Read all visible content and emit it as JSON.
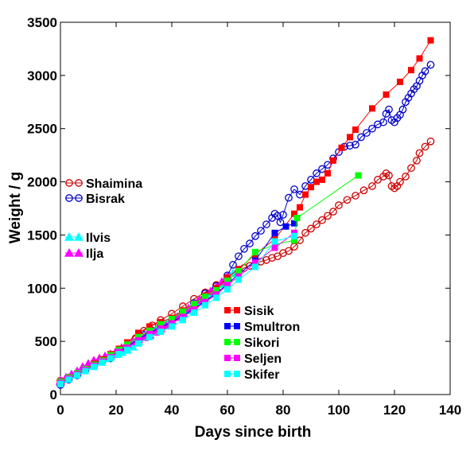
{
  "chart_data": {
    "type": "scatter",
    "title": "",
    "xlabel": "Days since birth",
    "ylabel": "Weight / g",
    "xlim": [
      0,
      140
    ],
    "ylim": [
      0,
      3500
    ],
    "xticks": [
      0,
      20,
      40,
      60,
      80,
      100,
      120,
      140
    ],
    "yticks": [
      0,
      500,
      1000,
      1500,
      2000,
      2500,
      3000,
      3500
    ],
    "xtick_labels": [
      "0",
      "20",
      "40",
      "60",
      "80",
      "100",
      "120",
      "140"
    ],
    "ytick_labels": [
      "0",
      "500",
      "1000",
      "1500",
      "2000",
      "2500",
      "3000",
      "3500"
    ],
    "grid": false,
    "legend_groups": [
      "left-middle",
      "lower-middle"
    ],
    "series": [
      {
        "name": "Shaimina",
        "color": "#cc0000",
        "marker": "circle-open",
        "line": true,
        "x": [
          0,
          3,
          6,
          9,
          12,
          15,
          18,
          21,
          24,
          27,
          30,
          33,
          36,
          40,
          44,
          48,
          52,
          56,
          60,
          64,
          66,
          68,
          70,
          72,
          74,
          76,
          78,
          80,
          82,
          84,
          86,
          88,
          90,
          92,
          94,
          96,
          98,
          100,
          103,
          106,
          109,
          112,
          114,
          116,
          117,
          118,
          119,
          120,
          121,
          122,
          124,
          126,
          128,
          129,
          131,
          133
        ],
        "y": [
          130,
          160,
          195,
          240,
          280,
          320,
          360,
          410,
          460,
          530,
          600,
          650,
          700,
          760,
          830,
          900,
          960,
          1030,
          1100,
          1160,
          1190,
          1210,
          1230,
          1250,
          1265,
          1285,
          1300,
          1330,
          1350,
          1390,
          1450,
          1520,
          1560,
          1600,
          1640,
          1680,
          1720,
          1780,
          1830,
          1870,
          1920,
          1960,
          2020,
          2050,
          2080,
          2060,
          1960,
          1940,
          1960,
          2000,
          2050,
          2130,
          2200,
          2270,
          2330,
          2380
        ]
      },
      {
        "name": "Bisrak",
        "color": "#0000cc",
        "marker": "circle-open",
        "line": true,
        "x": [
          0,
          3,
          6,
          9,
          12,
          15,
          18,
          21,
          24,
          27,
          30,
          33,
          36,
          40,
          44,
          48,
          52,
          56,
          60,
          62,
          64,
          66,
          68,
          70,
          72,
          74,
          76,
          77,
          78,
          79,
          80,
          82,
          84,
          86,
          88,
          90,
          92,
          94,
          96,
          98,
          100,
          102,
          104,
          106,
          108,
          110,
          112,
          114,
          116,
          117,
          118,
          119,
          120,
          121,
          122,
          123,
          124,
          125,
          126,
          127,
          128,
          129,
          130,
          131,
          133
        ],
        "y": [
          90,
          140,
          180,
          230,
          270,
          310,
          340,
          380,
          430,
          490,
          560,
          600,
          650,
          700,
          780,
          860,
          950,
          1020,
          1120,
          1220,
          1300,
          1370,
          1420,
          1490,
          1540,
          1600,
          1660,
          1700,
          1680,
          1620,
          1690,
          1850,
          1930,
          1880,
          1960,
          2020,
          2080,
          2120,
          2160,
          2220,
          2280,
          2330,
          2340,
          2350,
          2420,
          2460,
          2500,
          2540,
          2560,
          2640,
          2680,
          2580,
          2560,
          2600,
          2630,
          2680,
          2750,
          2790,
          2830,
          2870,
          2900,
          2950,
          3000,
          3040,
          3100
        ]
      },
      {
        "name": "Ilvis",
        "color": "#00ffff",
        "marker": "triangle",
        "line": true,
        "x": [
          0,
          2,
          4,
          6,
          8,
          10,
          12,
          14,
          16,
          18,
          20,
          22,
          24,
          26,
          28,
          30,
          32,
          34,
          36,
          38,
          40,
          42,
          44,
          46,
          48,
          50,
          52,
          54,
          56,
          58,
          60,
          62
        ],
        "y": [
          130,
          160,
          190,
          220,
          250,
          280,
          300,
          320,
          340,
          360,
          380,
          400,
          420,
          450,
          500,
          540,
          570,
          600,
          640,
          670,
          700,
          730,
          760,
          790,
          830,
          870,
          910,
          950,
          990,
          1040,
          1090,
          1140
        ]
      },
      {
        "name": "Ilja",
        "color": "#ff00ff",
        "marker": "triangle",
        "line": true,
        "x": [
          0,
          2,
          4,
          6,
          8,
          10,
          12,
          14,
          16,
          18,
          20,
          22,
          24,
          26,
          28,
          30,
          32,
          34,
          36,
          38,
          40,
          42,
          44,
          46,
          48,
          50,
          52,
          54,
          56,
          58,
          60
        ],
        "y": [
          130,
          160,
          190,
          220,
          260,
          290,
          320,
          340,
          360,
          380,
          410,
          440,
          470,
          500,
          520,
          540,
          560,
          590,
          620,
          650,
          690,
          730,
          770,
          810,
          850,
          890,
          930,
          970,
          1010,
          1060,
          1110
        ]
      },
      {
        "name": "Sisik",
        "color": "#ff0000",
        "marker": "square",
        "line": true,
        "x": [
          0,
          3,
          6,
          9,
          12,
          15,
          18,
          21,
          24,
          28,
          32,
          36,
          40,
          44,
          48,
          52,
          56,
          60,
          64,
          70,
          77,
          84,
          86,
          88,
          90,
          92,
          94,
          96,
          98,
          101,
          104,
          106,
          112,
          117,
          122,
          126,
          129,
          133
        ],
        "y": [
          120,
          160,
          200,
          240,
          290,
          330,
          380,
          430,
          490,
          580,
          640,
          680,
          720,
          790,
          850,
          930,
          1000,
          1100,
          1180,
          1320,
          1460,
          1700,
          1760,
          1880,
          1950,
          2000,
          2020,
          2080,
          2200,
          2320,
          2420,
          2490,
          2690,
          2820,
          2940,
          3050,
          3160,
          3330
        ]
      },
      {
        "name": "Smultron",
        "color": "#0000ff",
        "marker": "square",
        "line": true,
        "x": [
          0,
          3,
          6,
          9,
          12,
          15,
          18,
          21,
          24,
          28,
          32,
          36,
          40,
          44,
          48,
          52,
          56,
          60,
          64,
          70,
          77,
          81,
          84
        ],
        "y": [
          110,
          150,
          190,
          230,
          270,
          310,
          350,
          400,
          450,
          520,
          580,
          630,
          680,
          740,
          810,
          880,
          950,
          1040,
          1130,
          1260,
          1520,
          1580,
          1610
        ]
      },
      {
        "name": "Sikori",
        "color": "#00ff00",
        "marker": "square",
        "line": true,
        "x": [
          0,
          3,
          6,
          9,
          12,
          15,
          18,
          21,
          24,
          28,
          32,
          36,
          40,
          44,
          48,
          52,
          56,
          60,
          64,
          70,
          77,
          84,
          85,
          107
        ],
        "y": [
          120,
          160,
          200,
          240,
          280,
          320,
          370,
          420,
          470,
          540,
          600,
          660,
          710,
          780,
          850,
          920,
          980,
          1070,
          1160,
          1340,
          1410,
          1450,
          1660,
          2060
        ]
      },
      {
        "name": "Seljen",
        "color": "#ff00ff",
        "marker": "square",
        "line": true,
        "x": [
          0,
          3,
          6,
          9,
          12,
          15,
          18,
          21,
          24,
          28,
          32,
          36,
          40,
          44,
          48,
          52,
          56,
          60,
          64,
          70,
          77,
          84
        ],
        "y": [
          110,
          150,
          190,
          230,
          270,
          310,
          350,
          400,
          440,
          510,
          570,
          620,
          670,
          730,
          800,
          870,
          940,
          1030,
          1110,
          1240,
          1380,
          1520
        ]
      },
      {
        "name": "Skifer",
        "color": "#00ffff",
        "marker": "square",
        "line": true,
        "x": [
          0,
          3,
          6,
          9,
          12,
          15,
          18,
          21,
          24,
          28,
          32,
          36,
          40,
          44,
          48,
          52,
          56,
          60,
          64,
          70,
          77,
          84
        ],
        "y": [
          100,
          140,
          180,
          220,
          260,
          300,
          340,
          380,
          420,
          480,
          540,
          590,
          640,
          700,
          770,
          840,
          910,
          990,
          1080,
          1200,
          1440,
          1490
        ]
      }
    ]
  }
}
